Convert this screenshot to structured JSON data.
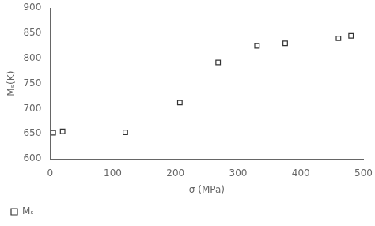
{
  "chart_data": {
    "type": "scatter",
    "x": [
      5,
      20,
      120,
      207,
      268,
      330,
      375,
      460,
      480
    ],
    "series": [
      {
        "name": "Mₛ",
        "marker": "square",
        "color": "#333333",
        "values": [
          652,
          655,
          653,
          712,
          792,
          825,
          830,
          840,
          845
        ]
      }
    ],
    "xlim": [
      0,
      500
    ],
    "ylim": [
      600,
      900
    ],
    "xticks": [
      0,
      100,
      200,
      300,
      400,
      500
    ],
    "yticks": [
      600,
      650,
      700,
      750,
      800,
      850,
      900
    ],
    "xlabel": "σ̄ (MPa)",
    "ylabel": "Mₛ(K)",
    "grid": false,
    "legend": "lower left"
  }
}
